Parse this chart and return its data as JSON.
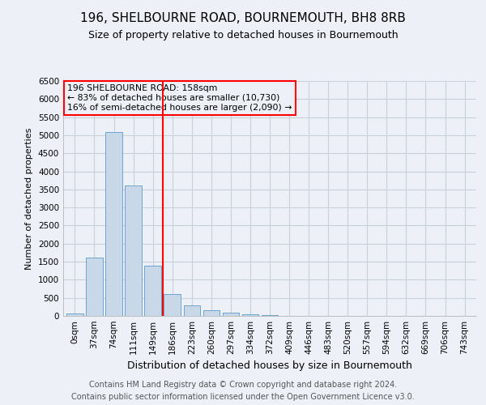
{
  "title1": "196, SHELBOURNE ROAD, BOURNEMOUTH, BH8 8RB",
  "title2": "Size of property relative to detached houses in Bournemouth",
  "xlabel": "Distribution of detached houses by size in Bournemouth",
  "ylabel": "Number of detached properties",
  "footer1": "Contains HM Land Registry data © Crown copyright and database right 2024.",
  "footer2": "Contains public sector information licensed under the Open Government Licence v3.0.",
  "annotation_line1": "196 SHELBOURNE ROAD: 158sqm",
  "annotation_line2": "← 83% of detached houses are smaller (10,730)",
  "annotation_line3": "16% of semi-detached houses are larger (2,090) →",
  "bar_color": "#c8d8e8",
  "bar_edge_color": "#5a9bc8",
  "vline_color": "red",
  "vline_x": 4.5,
  "categories": [
    "0sqm",
    "37sqm",
    "74sqm",
    "111sqm",
    "149sqm",
    "186sqm",
    "223sqm",
    "260sqm",
    "297sqm",
    "334sqm",
    "372sqm",
    "409sqm",
    "446sqm",
    "483sqm",
    "520sqm",
    "557sqm",
    "594sqm",
    "632sqm",
    "669sqm",
    "706sqm",
    "743sqm"
  ],
  "values": [
    60,
    1620,
    5080,
    3600,
    1400,
    610,
    290,
    150,
    100,
    50,
    20,
    10,
    5,
    5,
    3,
    2,
    1,
    1,
    1,
    0,
    0
  ],
  "ylim": [
    0,
    6500
  ],
  "yticks": [
    0,
    500,
    1000,
    1500,
    2000,
    2500,
    3000,
    3500,
    4000,
    4500,
    5000,
    5500,
    6000,
    6500
  ],
  "grid_color": "#c8d0dc",
  "background_color": "#edf1f7",
  "annotation_box_edge": "red",
  "title1_fontsize": 11,
  "title2_fontsize": 9,
  "xlabel_fontsize": 9,
  "ylabel_fontsize": 8,
  "tick_fontsize": 7.5,
  "footer_fontsize": 7
}
